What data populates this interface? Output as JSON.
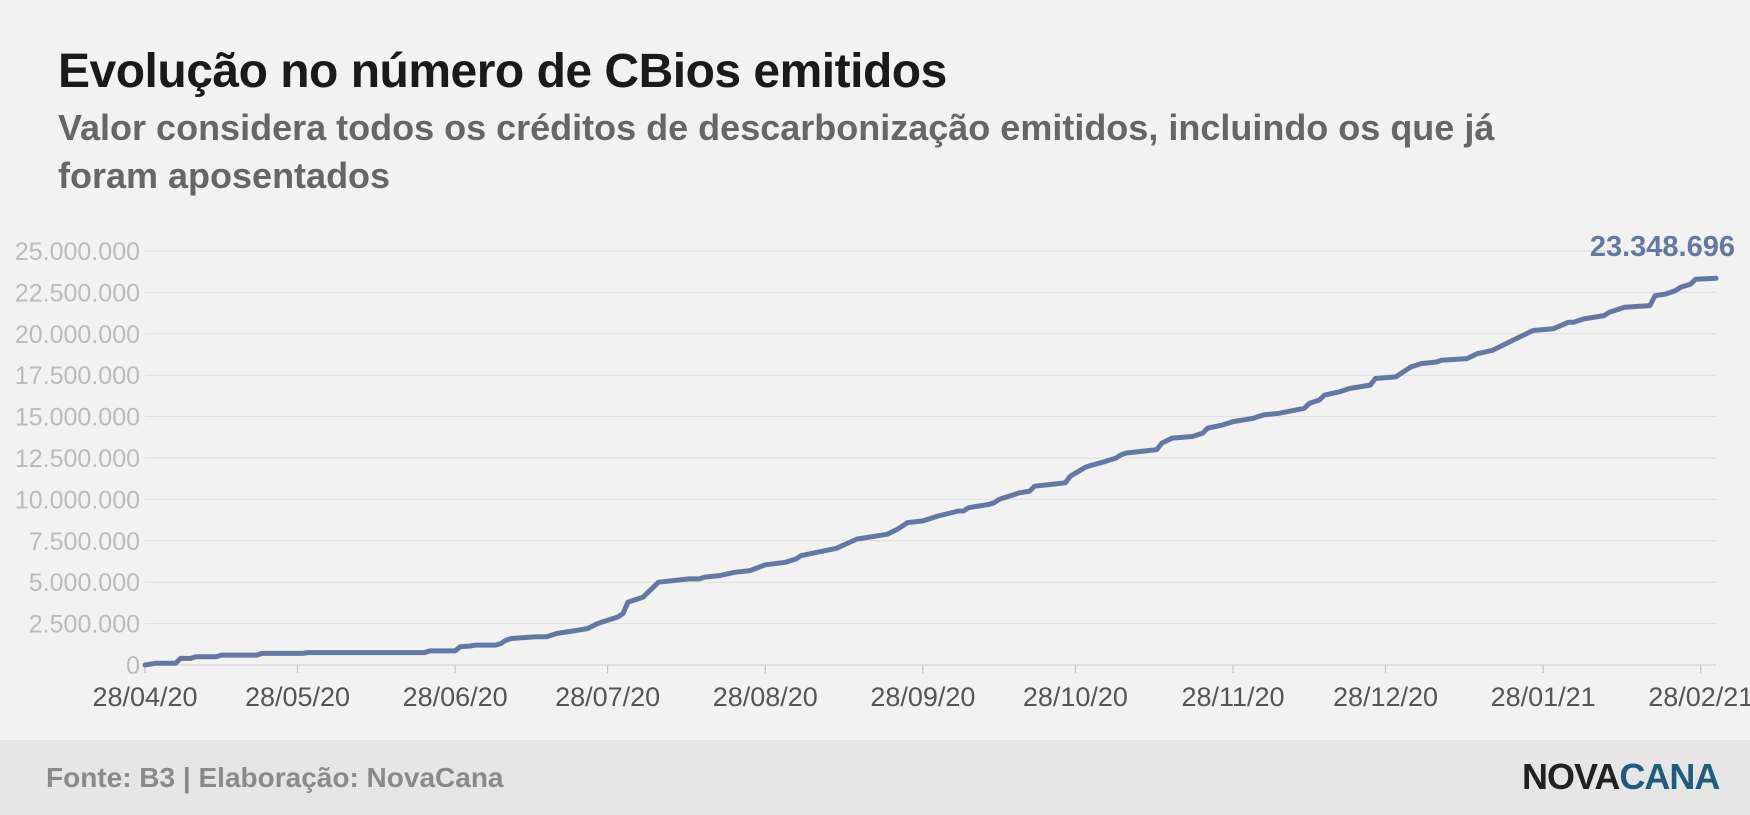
{
  "header": {
    "title": "Evolução no número de CBios emitidos",
    "subtitle": "Valor considera todos os créditos de descarbonização emitidos, incluindo os que já foram aposentados"
  },
  "footer": {
    "source": "Fonte: B3 | Elaboração: NovaCana",
    "logo_part1": "NOVA",
    "logo_part2": "CANA"
  },
  "colors": {
    "line": "#6478a6",
    "grid": "#dddddd",
    "tick": "#bbbbbb",
    "xtick": "#555555",
    "logo_accent": "#1f5d7a"
  },
  "chart_data": {
    "type": "line",
    "x_unit": "date",
    "ylim": [
      0,
      25000000
    ],
    "xlim": [
      "2020-04-28",
      "2021-03-03"
    ],
    "yticks": [
      {
        "value": 0,
        "label": "0"
      },
      {
        "value": 2500000,
        "label": "2.500.000"
      },
      {
        "value": 5000000,
        "label": "5.000.000"
      },
      {
        "value": 7500000,
        "label": "7.500.000"
      },
      {
        "value": 10000000,
        "label": "10.000.000"
      },
      {
        "value": 12500000,
        "label": "12.500.000"
      },
      {
        "value": 15000000,
        "label": "15.000.000"
      },
      {
        "value": 17500000,
        "label": "17.500.000"
      },
      {
        "value": 20000000,
        "label": "20.000.000"
      },
      {
        "value": 22500000,
        "label": "22.500.000"
      },
      {
        "value": 25000000,
        "label": "25.000.000"
      }
    ],
    "xticks": [
      {
        "value": "2020-04-28",
        "label": "28/04/20"
      },
      {
        "value": "2020-05-28",
        "label": "28/05/20"
      },
      {
        "value": "2020-06-28",
        "label": "28/06/20"
      },
      {
        "value": "2020-07-28",
        "label": "28/07/20"
      },
      {
        "value": "2020-08-28",
        "label": "28/08/20"
      },
      {
        "value": "2020-09-28",
        "label": "28/09/20"
      },
      {
        "value": "2020-10-28",
        "label": "28/10/20"
      },
      {
        "value": "2020-11-28",
        "label": "28/11/20"
      },
      {
        "value": "2020-12-28",
        "label": "28/12/20"
      },
      {
        "value": "2021-01-28",
        "label": "28/01/21"
      },
      {
        "value": "2021-02-28",
        "label": "28/02/21"
      }
    ],
    "end_label": "23.348.696",
    "series": [
      {
        "x": [
          "2020-04-28",
          "2020-04-30",
          "2020-05-04",
          "2020-05-05",
          "2020-05-07",
          "2020-05-08",
          "2020-05-12",
          "2020-05-13",
          "2020-05-20",
          "2020-05-21",
          "2020-05-29",
          "2020-05-30",
          "2020-06-22",
          "2020-06-23",
          "2020-06-28",
          "2020-06-29",
          "2020-07-01",
          "2020-07-02",
          "2020-07-06",
          "2020-07-07",
          "2020-07-08",
          "2020-07-09",
          "2020-07-14",
          "2020-07-15",
          "2020-07-16",
          "2020-07-18",
          "2020-07-20",
          "2020-07-21",
          "2020-07-24",
          "2020-07-26",
          "2020-07-27",
          "2020-07-28",
          "2020-07-30",
          "2020-07-31",
          "2020-08-01",
          "2020-08-03",
          "2020-08-04",
          "2020-08-07",
          "2020-08-13",
          "2020-08-15",
          "2020-08-16",
          "2020-08-19",
          "2020-08-22",
          "2020-08-25",
          "2020-08-28",
          "2020-09-01",
          "2020-09-03",
          "2020-09-04",
          "2020-09-11",
          "2020-09-15",
          "2020-09-17",
          "2020-09-18",
          "2020-09-21",
          "2020-09-22",
          "2020-09-23",
          "2020-09-25",
          "2020-09-28",
          "2020-10-01",
          "2020-10-05",
          "2020-10-06",
          "2020-10-07",
          "2020-10-11",
          "2020-10-12",
          "2020-10-13",
          "2020-10-17",
          "2020-10-19",
          "2020-10-20",
          "2020-10-23",
          "2020-10-26",
          "2020-10-27",
          "2020-10-30",
          "2020-10-31",
          "2020-11-03",
          "2020-11-05",
          "2020-11-06",
          "2020-11-07",
          "2020-11-13",
          "2020-11-14",
          "2020-11-16",
          "2020-11-20",
          "2020-11-22",
          "2020-11-23",
          "2020-11-26",
          "2020-11-28",
          "2020-12-02",
          "2020-12-04",
          "2020-12-07",
          "2020-12-12",
          "2020-12-13",
          "2020-12-15",
          "2020-12-16",
          "2020-12-19",
          "2020-12-21",
          "2020-12-25",
          "2020-12-26",
          "2020-12-30",
          "2021-01-01",
          "2021-01-02",
          "2021-01-04",
          "2021-01-07",
          "2021-01-08",
          "2021-01-13",
          "2021-01-15",
          "2021-01-18",
          "2021-01-20",
          "2021-01-22",
          "2021-01-26",
          "2021-01-30",
          "2021-02-02",
          "2021-02-03",
          "2021-02-05",
          "2021-02-09",
          "2021-02-10",
          "2021-02-11",
          "2021-02-12",
          "2021-02-13",
          "2021-02-18",
          "2021-02-19",
          "2021-02-21",
          "2021-02-23",
          "2021-02-24",
          "2021-02-26",
          "2021-02-27",
          "2021-03-03"
        ],
        "values": [
          0,
          100000,
          100000,
          400000,
          400000,
          500000,
          500000,
          600000,
          600000,
          700000,
          700000,
          750000,
          750000,
          850000,
          850000,
          1100000,
          1150000,
          1200000,
          1200000,
          1300000,
          1500000,
          1600000,
          1700000,
          1700000,
          1700000,
          1900000,
          2000000,
          2050000,
          2200000,
          2500000,
          2600000,
          2700000,
          2900000,
          3100000,
          3800000,
          4000000,
          4100000,
          5000000,
          5200000,
          5200000,
          5300000,
          5400000,
          5600000,
          5700000,
          6050000,
          6200000,
          6400000,
          6600000,
          7050000,
          7600000,
          7700000,
          7750000,
          7900000,
          8050000,
          8200000,
          8600000,
          8700000,
          9000000,
          9300000,
          9300000,
          9500000,
          9700000,
          9800000,
          10000000,
          10400000,
          10500000,
          10800000,
          10900000,
          11000000,
          11400000,
          11950000,
          12050000,
          12300000,
          12500000,
          12700000,
          12800000,
          13000000,
          13400000,
          13700000,
          13800000,
          14000000,
          14300000,
          14500000,
          14700000,
          14900000,
          15100000,
          15200000,
          15500000,
          15800000,
          16000000,
          16300000,
          16500000,
          16700000,
          16900000,
          17300000,
          17400000,
          17800000,
          18000000,
          18200000,
          18300000,
          18400000,
          18500000,
          18800000,
          19000000,
          19300000,
          19600000,
          20200000,
          20300000,
          20700000,
          20700000,
          20900000,
          21100000,
          21300000,
          21400000,
          21500000,
          21600000,
          21700000,
          22300000,
          22400000,
          22600000,
          22800000,
          23000000,
          23300000,
          23348696
        ]
      }
    ]
  }
}
